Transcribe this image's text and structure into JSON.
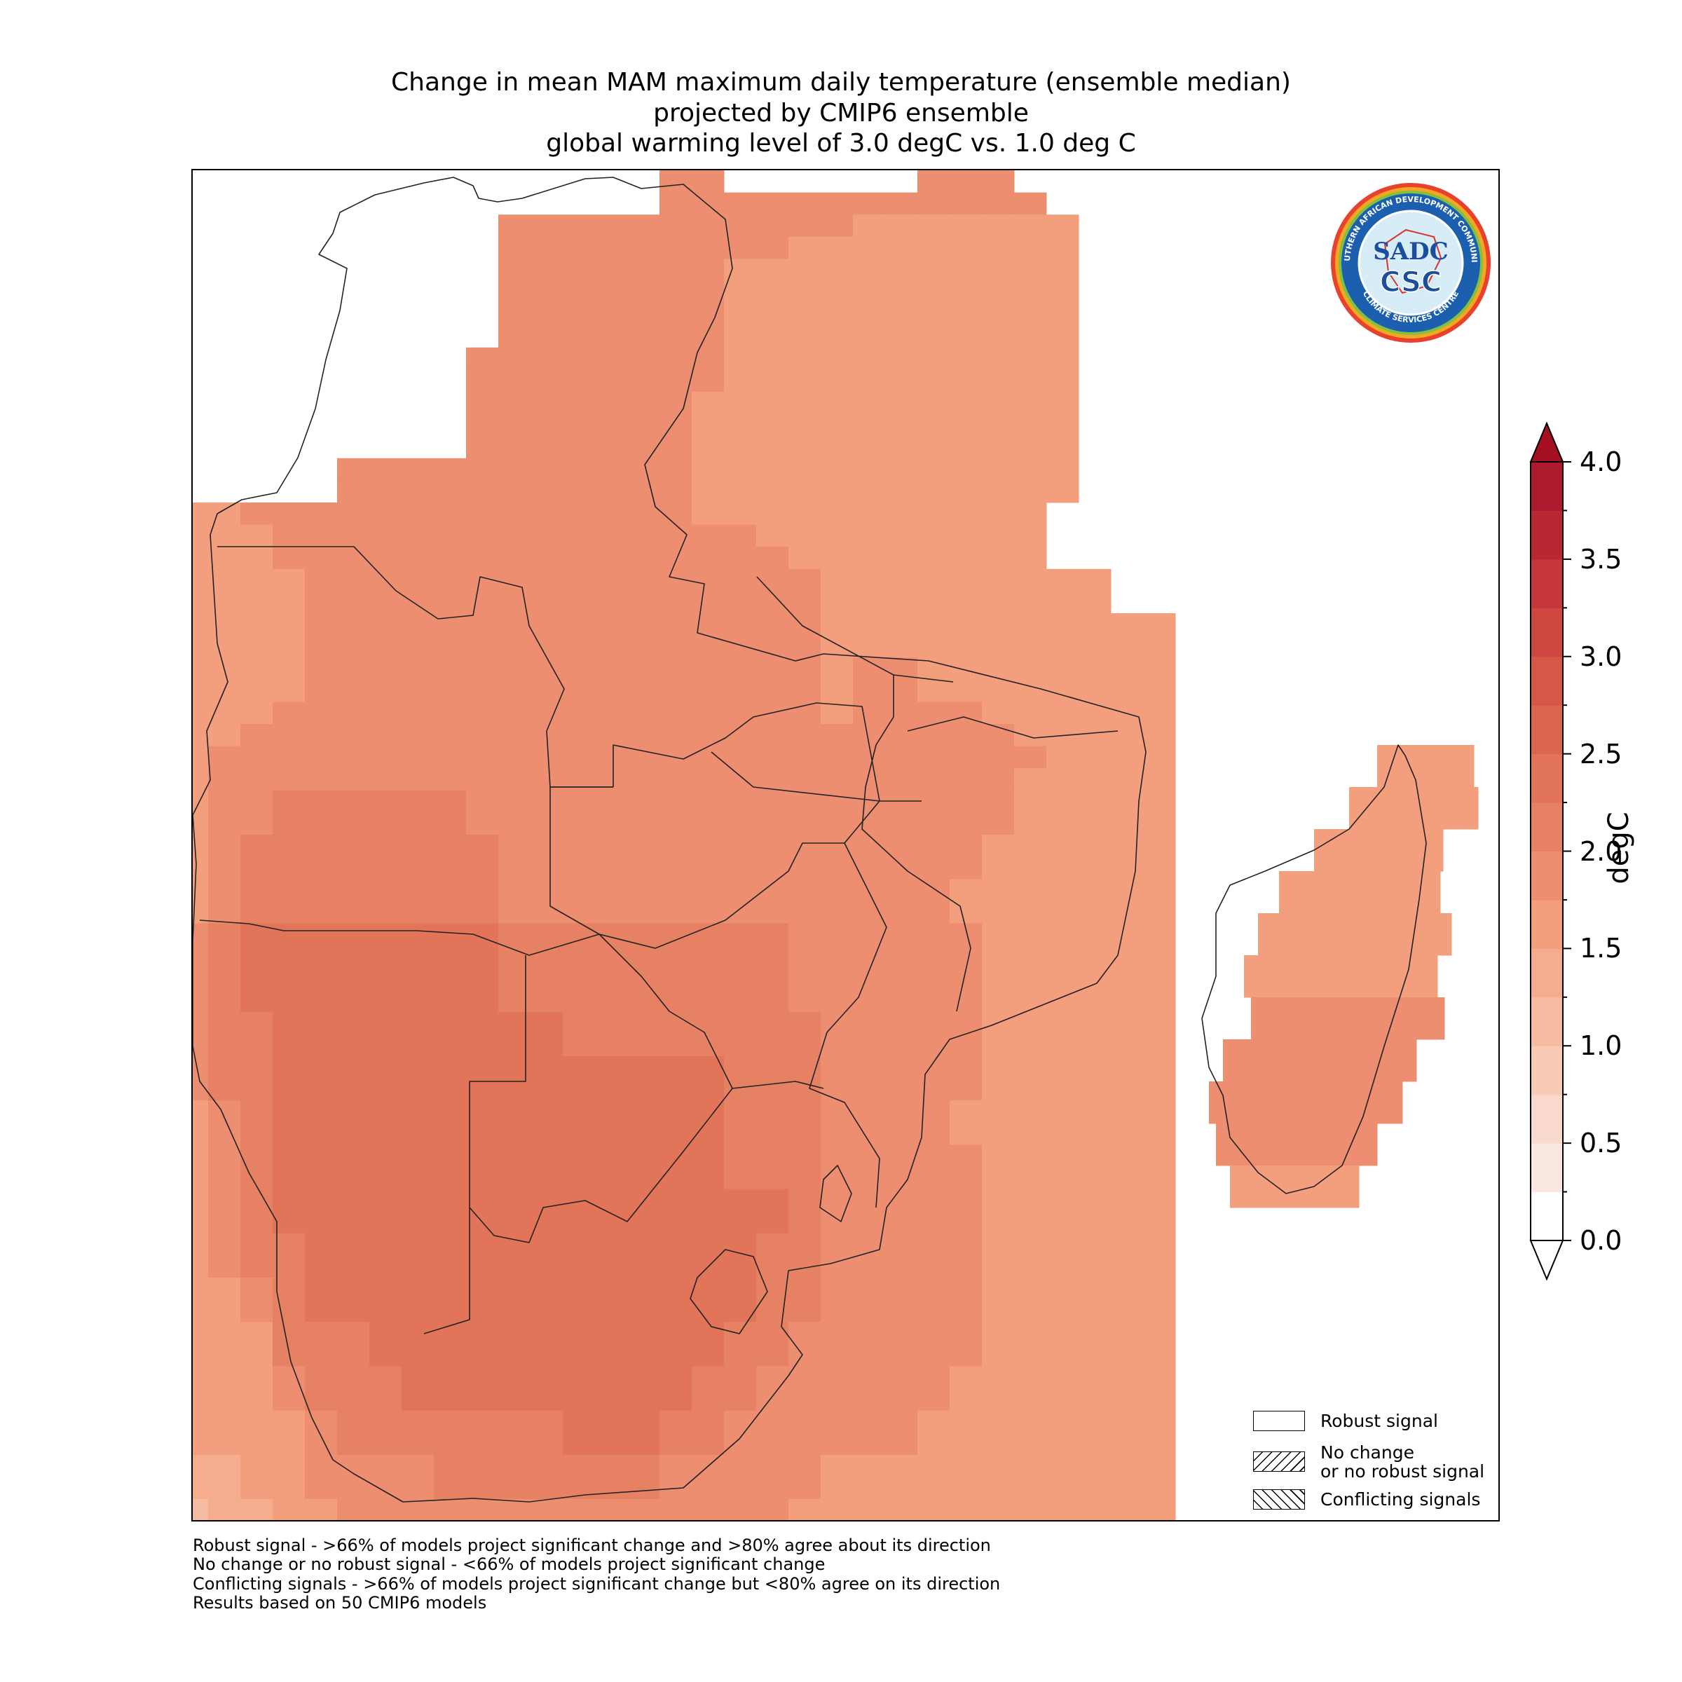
{
  "title": {
    "line1": "Change in mean MAM maximum daily temperature (ensemble median)",
    "line2": "projected by CMIP6 ensemble",
    "line3": "global warming level of 3.0 degC vs. 1.0 deg C"
  },
  "colorbar": {
    "label": "degC",
    "min": 0.0,
    "max": 4.0,
    "step": 0.25,
    "ticks": [
      "0.0",
      "0.5",
      "1.0",
      "1.5",
      "2.0",
      "2.5",
      "3.0",
      "3.5",
      "4.0"
    ],
    "extend": "both",
    "colors": [
      "#ffffff",
      "#fae8e0",
      "#fad9cd",
      "#f8cbb5",
      "#f6bca2",
      "#f5ad8e",
      "#f39e7c",
      "#ec8e6f",
      "#e68263",
      "#e27559",
      "#db664e",
      "#d65647",
      "#cf4741",
      "#c5373b",
      "#b92733",
      "#ad1a2d"
    ],
    "over_color": "#a50f22"
  },
  "legend": {
    "robust": "Robust signal",
    "no_change_1": "No change",
    "no_change_2": "or no robust signal",
    "conflicting": "Conflicting signals"
  },
  "footnotes": [
    "Robust signal - >66% of models project significant change and >80% agree about its direction",
    "No change or no robust signal - <66% of models project significant change",
    "Conflicting signals - >66% of models project significant change but <80% agree on its direction",
    "Results based on 50 CMIP6 models"
  ],
  "logo": {
    "top_text": "SOUTHERN AFRICAN DEVELOPMENT COMMUNITY",
    "bottom_text": "CLIMATE SERVICES CENTRE",
    "mark": "SADC",
    "acronym": "CSC"
  },
  "map": {
    "region": "Southern Africa",
    "variable": "MAM maximum daily temperature change",
    "units": "degC",
    "cell_values_rows_north_to_south": [
      "---------77------777",
      "---------777777777777",
      "----777777777776666666",
      "----777777777666666666",
      "----777777766666666666",
      "----777777766666666666",
      "----777777766666666666",
      "----777777766666666666",
      "---7777777766666666666",
      "---7777777766666666666",
      "---7777777666666666666",
      "---7777777666666666666",
      "---7777777666666666666",
      "-77777777777666666666666",
      "-77777777777666666666666",
      "667777777777777766666666666",
      "666777777777777777666666666",
      "666777777777777777766666666",
      "66667777777777777777666666666",
      "66667777777777777777666666666",
      "6666777777777777777766666666666",
      "6666777777777777777766666666666",
      "6666777777777777777767766666666",
      "6666777777777777777767766666666",
      "6667777777777777777767777666666",
      "6677777777777777777777777766666",
      "6777777777777777777777777776666",
      "6777777777777777777777777766666",
      "6778888887777777777777777766666",
      "6778888887777777777777777766666",
      "6788888888777777777777777666666",
      "6788888888777777777777777666666",
      "6788888888777777777777776666666",
      "6788888888777777777777776666666",
      "7899999999888888888777777666666",
      "7899999999888888888777777666666",
      "7899999999888888888777777666666",
      "7899999999888888888777777666666",
      "7889999999998888888877777666666",
      "7889999999998888888877777666666",
      "7889999999999999988877777666666",
      "7889999999999999988877777666666",
      "6789999999999999988877776666666",
      "6789999999999999988877776666666",
      "6789999999999999988877777666666",
      "6789999999999999988877777666666",
      "6789999999999999999877777666666",
      "6789999999999999999877777666666",
      "6788999999999999998877777666666",
      "6788999999999999998877777666666",
      "6678999999999999998877777666666",
      "6678999999999999998877777666666",
      "6668889999999999988777777666666",
      "6668889999999999988777777666666",
      "6667888999999999887777776666666",
      "6667888999999999887777776666666",
      "6666788888889998877777766666666",
      "6666788888889998877777766666666",
      "5566777788888887777766666666666",
      "5566777788888887777766666666666",
      "4556677777777777777666666666666",
      "4556677777777777777666666666666"
    ]
  }
}
